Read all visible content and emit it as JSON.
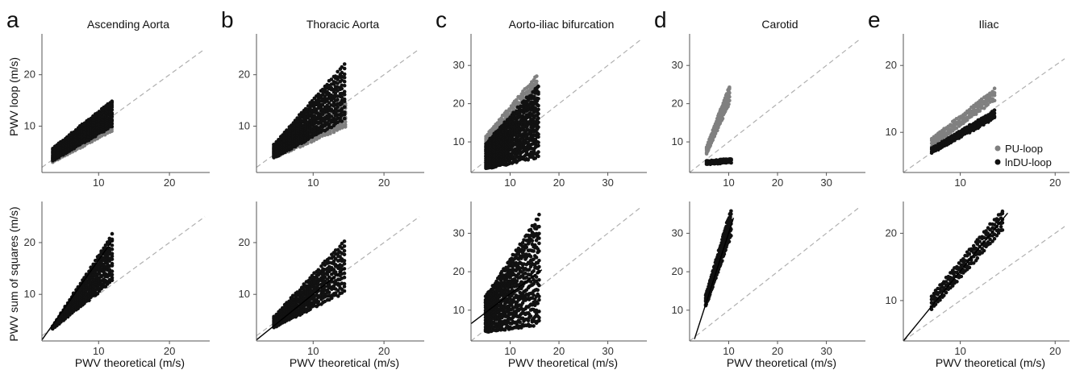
{
  "figure": {
    "ylabel_top": "PWV loop (m/s)",
    "ylabel_bottom": "PWV sum of squares (m/s)",
    "xlabel": "PWV theoretical (m/s)",
    "colors": {
      "pu": "#808080",
      "indu": "#111111",
      "identity": "#b0b0b0",
      "fit": "#000000",
      "axis": "#555555"
    }
  },
  "legend": {
    "pu_label": "PU-loop",
    "indu_label": "lnDU-loop",
    "position": "right"
  },
  "chart_data": [
    {
      "id": "a-top",
      "type": "scatter",
      "panel_letter": "a",
      "title": "Ascending Aorta",
      "row": "top",
      "xlim": [
        2,
        25
      ],
      "ylim": [
        1,
        27
      ],
      "xticks": [
        10,
        20
      ],
      "yticks": [
        10,
        20
      ],
      "identity_line": true,
      "series": [
        {
          "name": "PU-loop",
          "columns": {
            "xmin": 3.5,
            "xmax": 12.0,
            "step": 0.35,
            "lo_m": 0.72,
            "lo_b": 0.5,
            "hi_m": 0.95,
            "hi_b": 0.8,
            "n": 10
          }
        },
        {
          "name": "lnDU-loop",
          "columns": {
            "xmin": 3.5,
            "xmax": 12.0,
            "step": 0.3,
            "lo_m": 0.8,
            "lo_b": 0.5,
            "hi_m": 1.1,
            "hi_b": 1.8,
            "n": 12
          }
        }
      ]
    },
    {
      "id": "b-top",
      "type": "scatter",
      "panel_letter": "b",
      "title": "Thoracic Aorta",
      "row": "top",
      "xlim": [
        2,
        25
      ],
      "ylim": [
        1,
        27
      ],
      "xticks": [
        10,
        20
      ],
      "yticks": [
        10,
        20
      ],
      "identity_line": true,
      "series": [
        {
          "name": "PU-loop",
          "columns": {
            "xmin": 4.5,
            "xmax": 14.5,
            "step": 0.4,
            "lo_m": 0.6,
            "lo_b": 1.2,
            "hi_m": 0.85,
            "hi_b": 2.0,
            "n": 10
          }
        },
        {
          "name": "lnDU-loop",
          "columns": {
            "xmin": 4.5,
            "xmax": 14.5,
            "step": 0.3,
            "lo_m": 0.75,
            "lo_b": 0.5,
            "hi_m": 1.55,
            "hi_b": -0.5,
            "n": 14
          }
        }
      ]
    },
    {
      "id": "c-top",
      "type": "scatter",
      "panel_letter": "c",
      "title": "Aorto-iliac bifurcation",
      "row": "top",
      "xlim": [
        2,
        37
      ],
      "ylim": [
        2,
        37
      ],
      "xticks": [
        10,
        20,
        30
      ],
      "yticks": [
        10,
        20,
        30
      ],
      "identity_line": true,
      "series": [
        {
          "name": "PU-loop",
          "columns": {
            "xmin": 5.0,
            "xmax": 15.5,
            "step": 0.35,
            "lo_m": 0.7,
            "lo_b": 1.5,
            "hi_m": 1.5,
            "hi_b": 4.0,
            "n": 14
          }
        },
        {
          "name": "lnDU-loop",
          "columns": {
            "xmin": 5.0,
            "xmax": 16.0,
            "step": 0.3,
            "lo_m": 0.3,
            "lo_b": 1.5,
            "hi_m": 1.4,
            "hi_b": 2.5,
            "n": 16
          }
        }
      ]
    },
    {
      "id": "d-top",
      "type": "scatter",
      "panel_letter": "d",
      "title": "Carotid",
      "row": "top",
      "xlim": [
        2,
        37
      ],
      "ylim": [
        2,
        37
      ],
      "xticks": [
        10,
        20,
        30
      ],
      "yticks": [
        10,
        20,
        30
      ],
      "identity_line": true,
      "series": [
        {
          "name": "PU-loop",
          "columns": {
            "xmin": 5.5,
            "xmax": 10.2,
            "step": 0.18,
            "lo_m": 2.9,
            "lo_b": -9.0,
            "hi_m": 3.4,
            "hi_b": -10.0,
            "n": 5
          }
        },
        {
          "name": "lnDU-loop",
          "columns": {
            "xmin": 5.5,
            "xmax": 10.5,
            "step": 0.25,
            "lo_m": 0.1,
            "lo_b": 3.6,
            "hi_m": 0.12,
            "hi_b": 4.3,
            "n": 3
          }
        }
      ]
    },
    {
      "id": "e-top",
      "type": "scatter",
      "panel_letter": "e",
      "title": "Iliac",
      "row": "top",
      "xlim": [
        4,
        21
      ],
      "ylim": [
        4,
        24
      ],
      "xticks": [
        10,
        20
      ],
      "yticks": [
        10,
        20
      ],
      "identity_line": true,
      "series": [
        {
          "name": "PU-loop",
          "columns": {
            "xmin": 7.0,
            "xmax": 13.8,
            "step": 0.22,
            "lo_m": 1.05,
            "lo_b": 0.6,
            "hi_m": 1.12,
            "hi_b": 1.2,
            "n": 4
          }
        },
        {
          "name": "lnDU-loop",
          "columns": {
            "xmin": 7.0,
            "xmax": 13.8,
            "step": 0.22,
            "lo_m": 0.78,
            "lo_b": 1.5,
            "hi_m": 0.84,
            "hi_b": 1.8,
            "n": 4
          }
        }
      ]
    },
    {
      "id": "a-bottom",
      "type": "scatter",
      "row": "bottom",
      "xlim": [
        2,
        25
      ],
      "ylim": [
        1,
        27
      ],
      "xticks": [
        10,
        20
      ],
      "yticks": [
        10,
        20
      ],
      "identity_line": true,
      "fit_line": {
        "x": [
          2,
          12.0
        ],
        "y": [
          1.2,
          20.5
        ]
      },
      "series": [
        {
          "name": "",
          "columns": {
            "xmin": 3.5,
            "xmax": 12.0,
            "step": 0.3,
            "lo_m": 1.1,
            "lo_b": -0.5,
            "hi_m": 2.1,
            "hi_b": -3.5,
            "n": 14
          }
        }
      ]
    },
    {
      "id": "b-bottom",
      "type": "scatter",
      "row": "bottom",
      "xlim": [
        2,
        25
      ],
      "ylim": [
        1,
        27
      ],
      "xticks": [
        10,
        20
      ],
      "yticks": [
        10,
        20
      ],
      "identity_line": true,
      "fit_line": {
        "x": [
          2,
          14.5
        ],
        "y": [
          1.2,
          15.0
        ]
      },
      "series": [
        {
          "name": "",
          "columns": {
            "xmin": 4.5,
            "xmax": 14.5,
            "step": 0.3,
            "lo_m": 0.7,
            "lo_b": 0.5,
            "hi_m": 1.45,
            "hi_b": -0.8,
            "n": 12
          }
        }
      ]
    },
    {
      "id": "c-bottom",
      "type": "scatter",
      "row": "bottom",
      "xlim": [
        2,
        37
      ],
      "ylim": [
        2,
        37
      ],
      "xticks": [
        10,
        20,
        30
      ],
      "yticks": [
        10,
        20,
        30
      ],
      "identity_line": true,
      "fit_line": {
        "x": [
          2,
          16.5
        ],
        "y": [
          6.5,
          20.5
        ]
      },
      "series": [
        {
          "name": "",
          "columns": {
            "xmin": 5.0,
            "xmax": 16.0,
            "step": 0.28,
            "lo_m": 0.2,
            "lo_b": 3.5,
            "hi_m": 1.9,
            "hi_b": 4.0,
            "n": 16
          }
        }
      ]
    },
    {
      "id": "d-bottom",
      "type": "scatter",
      "row": "bottom",
      "xlim": [
        2,
        37
      ],
      "ylim": [
        2,
        37
      ],
      "xticks": [
        10,
        20,
        30
      ],
      "yticks": [
        10,
        20,
        30
      ],
      "identity_line": true,
      "fit_line": {
        "x": [
          3.0,
          11.0
        ],
        "y": [
          2.5,
          34.0
        ]
      },
      "series": [
        {
          "name": "",
          "columns": {
            "xmin": 5.3,
            "xmax": 10.6,
            "step": 0.14,
            "lo_m": 3.6,
            "lo_b": -8.0,
            "hi_m": 4.3,
            "hi_b": -9.0,
            "n": 6
          }
        }
      ]
    },
    {
      "id": "e-bottom",
      "type": "scatter",
      "row": "bottom",
      "xlim": [
        4,
        21
      ],
      "ylim": [
        4,
        24
      ],
      "xticks": [
        10,
        20
      ],
      "yticks": [
        10,
        20
      ],
      "identity_line": true,
      "fit_line": {
        "x": [
          4.0,
          15.0
        ],
        "y": [
          4.0,
          23.0
        ]
      },
      "series": [
        {
          "name": "",
          "columns": {
            "xmin": 7.0,
            "xmax": 14.5,
            "step": 0.22,
            "lo_m": 1.6,
            "lo_b": -2.5,
            "hi_m": 1.7,
            "hi_b": -1.2,
            "n": 5
          }
        }
      ]
    }
  ]
}
